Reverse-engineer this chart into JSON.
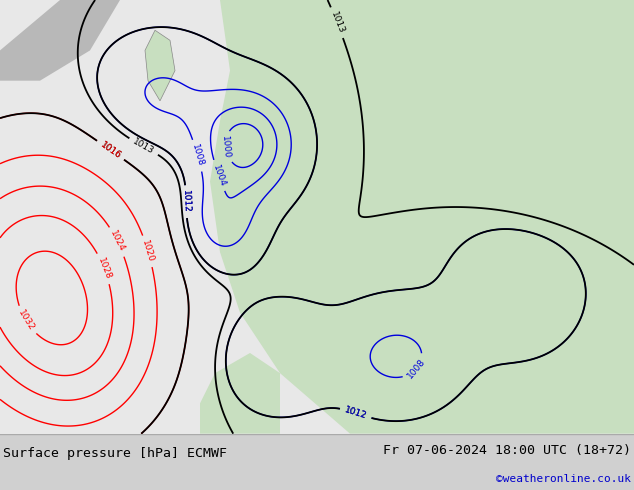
{
  "title_left": "Surface pressure [hPa] ECMWF",
  "title_right": "Fr 07-06-2024 18:00 UTC (18+72)",
  "watermark": "©weatheronline.co.uk",
  "map_bg_color": "#f0f0f0",
  "ocean_color": "#c8dff0",
  "land_color": "#c8dfc0",
  "highlight_land_color": "#b8cfb0",
  "fig_width": 6.34,
  "fig_height": 4.9,
  "dpi": 100,
  "title_fontsize": 9.5,
  "watermark_color": "#0000cc",
  "watermark_fontsize": 8,
  "bottom_bg": "#d8d8d8"
}
